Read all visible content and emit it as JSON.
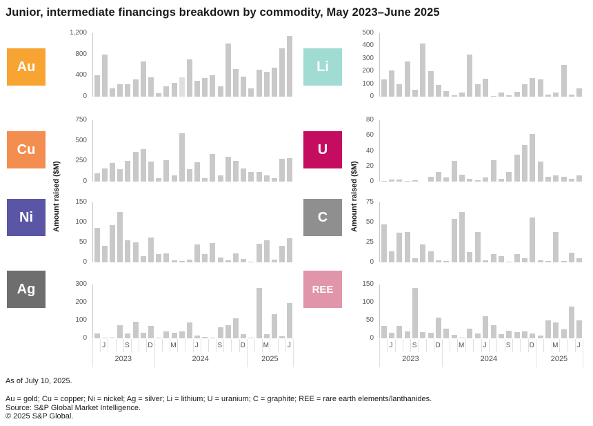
{
  "title": "Junior, intermediate financings breakdown by commodity, May 2023–June 2025",
  "ylabel": "Amount raised ($M)",
  "colors": {
    "bar": "#C9C9C9",
    "bar_light": "#E0E0E0",
    "axis_line": "#C8C8C8",
    "ruler_line": "#E0E0E0",
    "tick_text": "#595959",
    "axis_text": "#4D4D4D",
    "title_text": "#1A1A1A",
    "tile_text": "#FFFFFF"
  },
  "footer": {
    "as_of": "As of July 10, 2025.",
    "legend": "Au = gold; Cu = copper; Ni = nickel; Ag = silver; Li = lithium; U = uranium; C = graphite; REE = rare earth elements/lanthanides.",
    "source": "Source: S&P Global Market Intelligence.",
    "copyright": "© 2025 S&P Global."
  },
  "chart_data": {
    "type": "bar",
    "x_categories_months": [
      "May 2023",
      "Jun 2023",
      "Jul 2023",
      "Aug 2023",
      "Sep 2023",
      "Oct 2023",
      "Nov 2023",
      "Dec 2023",
      "Jan 2024",
      "Feb 2024",
      "Mar 2024",
      "Apr 2024",
      "May 2024",
      "Jun 2024",
      "Jul 2024",
      "Aug 2024",
      "Sep 2024",
      "Oct 2024",
      "Nov 2024",
      "Dec 2024",
      "Jan 2025",
      "Feb 2025",
      "Mar 2025",
      "Apr 2025",
      "May 2025",
      "Jun 2025"
    ],
    "xaxis": {
      "month_tick_labels": [
        {
          "slot": 1,
          "label": "J"
        },
        {
          "slot": 4,
          "label": "S"
        },
        {
          "slot": 7,
          "label": "D"
        },
        {
          "slot": 10,
          "label": "M"
        },
        {
          "slot": 13,
          "label": "J"
        },
        {
          "slot": 16,
          "label": "S"
        },
        {
          "slot": 19,
          "label": "D"
        },
        {
          "slot": 22,
          "label": "M"
        },
        {
          "slot": 25,
          "label": "J"
        }
      ],
      "years": [
        {
          "label": "2023",
          "start": 0,
          "span": 8
        },
        {
          "label": "2024",
          "start": 8,
          "span": 12
        },
        {
          "label": "2025",
          "start": 20,
          "span": 6
        }
      ]
    },
    "series": [
      {
        "symbol": "Au",
        "name": "gold",
        "tile_color": "#F7A432",
        "column": "left",
        "row": 0,
        "ymax": 1200,
        "ytick_vals": [
          0,
          400,
          800,
          1200
        ],
        "ytick_labels": [
          "0",
          "400",
          "800",
          "1,200"
        ],
        "light_indices": [
          11
        ],
        "values": [
          410,
          790,
          160,
          230,
          235,
          320,
          660,
          370,
          70,
          200,
          265,
          360,
          700,
          295,
          350,
          400,
          200,
          1010,
          520,
          375,
          155,
          505,
          465,
          550,
          910,
          1150
        ]
      },
      {
        "symbol": "Cu",
        "name": "copper",
        "tile_color": "#F48D50",
        "column": "left",
        "row": 1,
        "ymax": 750,
        "ytick_vals": [
          0,
          250,
          500,
          750
        ],
        "ytick_labels": [
          "0",
          "250",
          "500",
          "750"
        ],
        "light_indices": [],
        "values": [
          105,
          160,
          225,
          155,
          255,
          360,
          395,
          245,
          40,
          265,
          80,
          590,
          150,
          240,
          45,
          335,
          80,
          305,
          250,
          160,
          120,
          115,
          75,
          40,
          275,
          290
        ]
      },
      {
        "symbol": "Ni",
        "name": "nickel",
        "tile_color": "#5A55A5",
        "column": "left",
        "row": 2,
        "ymax": 150,
        "ytick_vals": [
          0,
          50,
          100,
          150
        ],
        "ytick_labels": [
          "0",
          "50",
          "100",
          "150"
        ],
        "light_indices": [],
        "values": [
          87,
          41,
          93,
          126,
          56,
          50,
          15,
          62,
          20,
          22,
          6,
          3,
          7,
          45,
          21,
          48,
          12,
          5,
          23,
          8,
          2,
          46,
          56,
          7,
          41,
          60
        ]
      },
      {
        "symbol": "Ag",
        "name": "silver",
        "tile_color": "#6E6E6E",
        "column": "left",
        "row": 3,
        "ymax": 300,
        "ytick_vals": [
          0,
          100,
          200,
          300
        ],
        "ytick_labels": [
          "0",
          "100",
          "200",
          "300"
        ],
        "light_indices": [],
        "values": [
          28,
          3,
          1,
          72,
          25,
          93,
          30,
          68,
          1,
          38,
          30,
          37,
          90,
          17,
          8,
          1,
          60,
          73,
          110,
          22,
          5,
          280,
          23,
          135,
          11,
          195
        ]
      },
      {
        "symbol": "Li",
        "name": "lithium",
        "tile_color": "#A1DCD2",
        "column": "right",
        "row": 0,
        "ymax": 500,
        "ytick_vals": [
          0,
          100,
          200,
          300,
          400,
          500
        ],
        "ytick_labels": [
          "0",
          "100",
          "200",
          "300",
          "400",
          "500"
        ],
        "light_indices": [],
        "values": [
          135,
          205,
          100,
          275,
          55,
          420,
          200,
          90,
          45,
          12,
          30,
          330,
          100,
          140,
          5,
          30,
          12,
          40,
          100,
          145,
          135,
          18,
          30,
          250,
          18,
          65
        ]
      },
      {
        "symbol": "U",
        "name": "uranium",
        "tile_color": "#C40D61",
        "column": "right",
        "row": 1,
        "ymax": 80,
        "ytick_vals": [
          0,
          20,
          40,
          60,
          80
        ],
        "ytick_labels": [
          "0",
          "20",
          "40",
          "60",
          "80"
        ],
        "light_indices": [],
        "values": [
          1,
          3,
          2.5,
          1,
          1.5,
          0,
          6,
          13,
          5,
          27,
          9,
          4,
          1.5,
          5,
          28,
          3.5,
          13,
          35,
          48,
          62,
          26,
          6,
          8,
          6,
          4,
          8
        ]
      },
      {
        "symbol": "C",
        "name": "graphite",
        "tile_color": "#8F8F8F",
        "column": "right",
        "row": 2,
        "ymax": 75,
        "ytick_vals": [
          0,
          25,
          50,
          75
        ],
        "ytick_labels": [
          "0",
          "25",
          "50",
          "75"
        ],
        "light_indices": [],
        "values": [
          47,
          14,
          37,
          38,
          5,
          22,
          14,
          3,
          2,
          54,
          63,
          13,
          38,
          3,
          10,
          8,
          0.5,
          10,
          5,
          56,
          3,
          2,
          38,
          2,
          12,
          5
        ]
      },
      {
        "symbol": "REE",
        "name": "rare earth elements/lanthanides",
        "tile_color": "#E095AB",
        "column": "right",
        "row": 3,
        "ymax": 150,
        "ytick_vals": [
          0,
          50,
          100,
          150
        ],
        "ytick_labels": [
          "0",
          "50",
          "100",
          "150"
        ],
        "light_indices": [],
        "values": [
          34,
          15,
          34,
          20,
          140,
          17,
          16,
          58,
          27,
          9,
          2,
          27,
          13,
          61,
          36,
          12,
          21,
          18,
          19,
          14,
          7,
          50,
          45,
          25,
          88,
          50
        ]
      }
    ]
  }
}
